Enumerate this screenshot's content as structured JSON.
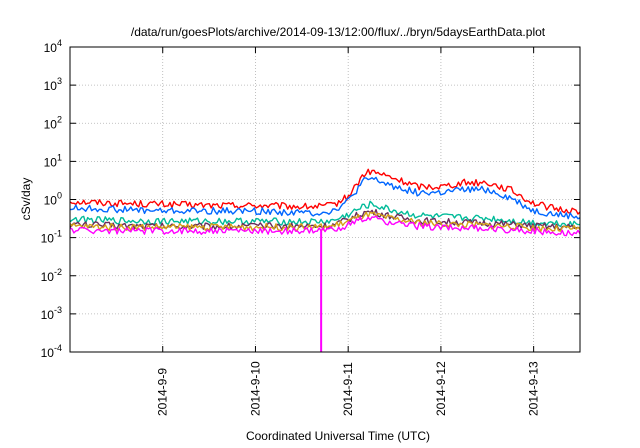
{
  "chart_data": {
    "type": "line",
    "title": "/data/run/goesPlots/archive/2014-09-13/12:00/flux/../bryn/5daysEarthData.plot",
    "xlabel": "Coordinated Universal Time (UTC)",
    "ylabel": "cSv/day",
    "yscale": "log",
    "ylim": [
      0.0001,
      10000
    ],
    "xlim": [
      "2014-09-08T00:00",
      "2014-09-13T12:00"
    ],
    "grid": true,
    "y_ticks": [
      {
        "base": "10",
        "exp": "-4"
      },
      {
        "base": "10",
        "exp": "-3"
      },
      {
        "base": "10",
        "exp": "-2"
      },
      {
        "base": "10",
        "exp": "-1"
      },
      {
        "base": "10",
        "exp": "0"
      },
      {
        "base": "10",
        "exp": "1"
      },
      {
        "base": "10",
        "exp": "2"
      },
      {
        "base": "10",
        "exp": "3"
      },
      {
        "base": "10",
        "exp": "4"
      }
    ],
    "x_ticks": [
      "2014-9-9",
      "2014-9-10",
      "2014-9-11",
      "2014-9-12",
      "2014-9-13"
    ],
    "x": [
      "2014-09-08T00:00",
      "2014-09-08T12:00",
      "2014-09-09T00:00",
      "2014-09-09T12:00",
      "2014-09-10T00:00",
      "2014-09-10T12:00",
      "2014-09-10T16:00",
      "2014-09-10T20:00",
      "2014-09-11T00:00",
      "2014-09-11T04:00",
      "2014-09-11T06:00",
      "2014-09-11T12:00",
      "2014-09-11T18:00",
      "2014-09-12T00:00",
      "2014-09-12T06:00",
      "2014-09-12T12:00",
      "2014-09-12T18:00",
      "2014-09-13T00:00",
      "2014-09-13T06:00",
      "2014-09-13T12:00"
    ],
    "series": [
      {
        "color": "#ff0000",
        "values": [
          0.9,
          0.8,
          0.75,
          0.7,
          0.7,
          0.65,
          0.65,
          0.7,
          1.2,
          4.5,
          5.5,
          3.5,
          2.2,
          2.2,
          2.8,
          2.8,
          1.8,
          0.8,
          0.55,
          0.5
        ]
      },
      {
        "color": "#0066ff",
        "values": [
          0.6,
          0.55,
          0.5,
          0.5,
          0.5,
          0.45,
          0.45,
          0.5,
          0.9,
          3.0,
          3.5,
          2.2,
          1.5,
          1.5,
          1.8,
          1.8,
          1.1,
          0.5,
          0.4,
          0.35
        ]
      },
      {
        "color": "#00bb99",
        "values": [
          0.3,
          0.28,
          0.27,
          0.27,
          0.27,
          0.26,
          0.26,
          0.27,
          0.4,
          0.65,
          0.75,
          0.5,
          0.38,
          0.35,
          0.33,
          0.32,
          0.28,
          0.25,
          0.24,
          0.23
        ]
      },
      {
        "color": "#6b2c5c",
        "values": [
          0.22,
          0.21,
          0.2,
          0.2,
          0.2,
          0.2,
          0.2,
          0.21,
          0.3,
          0.45,
          0.48,
          0.35,
          0.28,
          0.26,
          0.25,
          0.24,
          0.22,
          0.2,
          0.19,
          0.18
        ]
      },
      {
        "color": "#d4a017",
        "values": [
          0.2,
          0.19,
          0.19,
          0.19,
          0.19,
          0.19,
          0.19,
          0.2,
          0.27,
          0.38,
          0.4,
          0.3,
          0.25,
          0.23,
          0.22,
          0.21,
          0.2,
          0.18,
          0.17,
          0.17
        ]
      },
      {
        "color": "#ff00ff",
        "values": [
          0.16,
          0.15,
          0.15,
          0.15,
          0.15,
          0.15,
          0.15,
          0.16,
          0.22,
          0.3,
          0.32,
          0.24,
          0.2,
          0.19,
          0.18,
          0.17,
          0.16,
          0.15,
          0.14,
          0.13
        ]
      }
    ],
    "annotations": [
      {
        "type": "dropout",
        "series_color": "#ff00ff",
        "x": "2014-09-10T17:00",
        "y": 0.0001
      }
    ]
  }
}
